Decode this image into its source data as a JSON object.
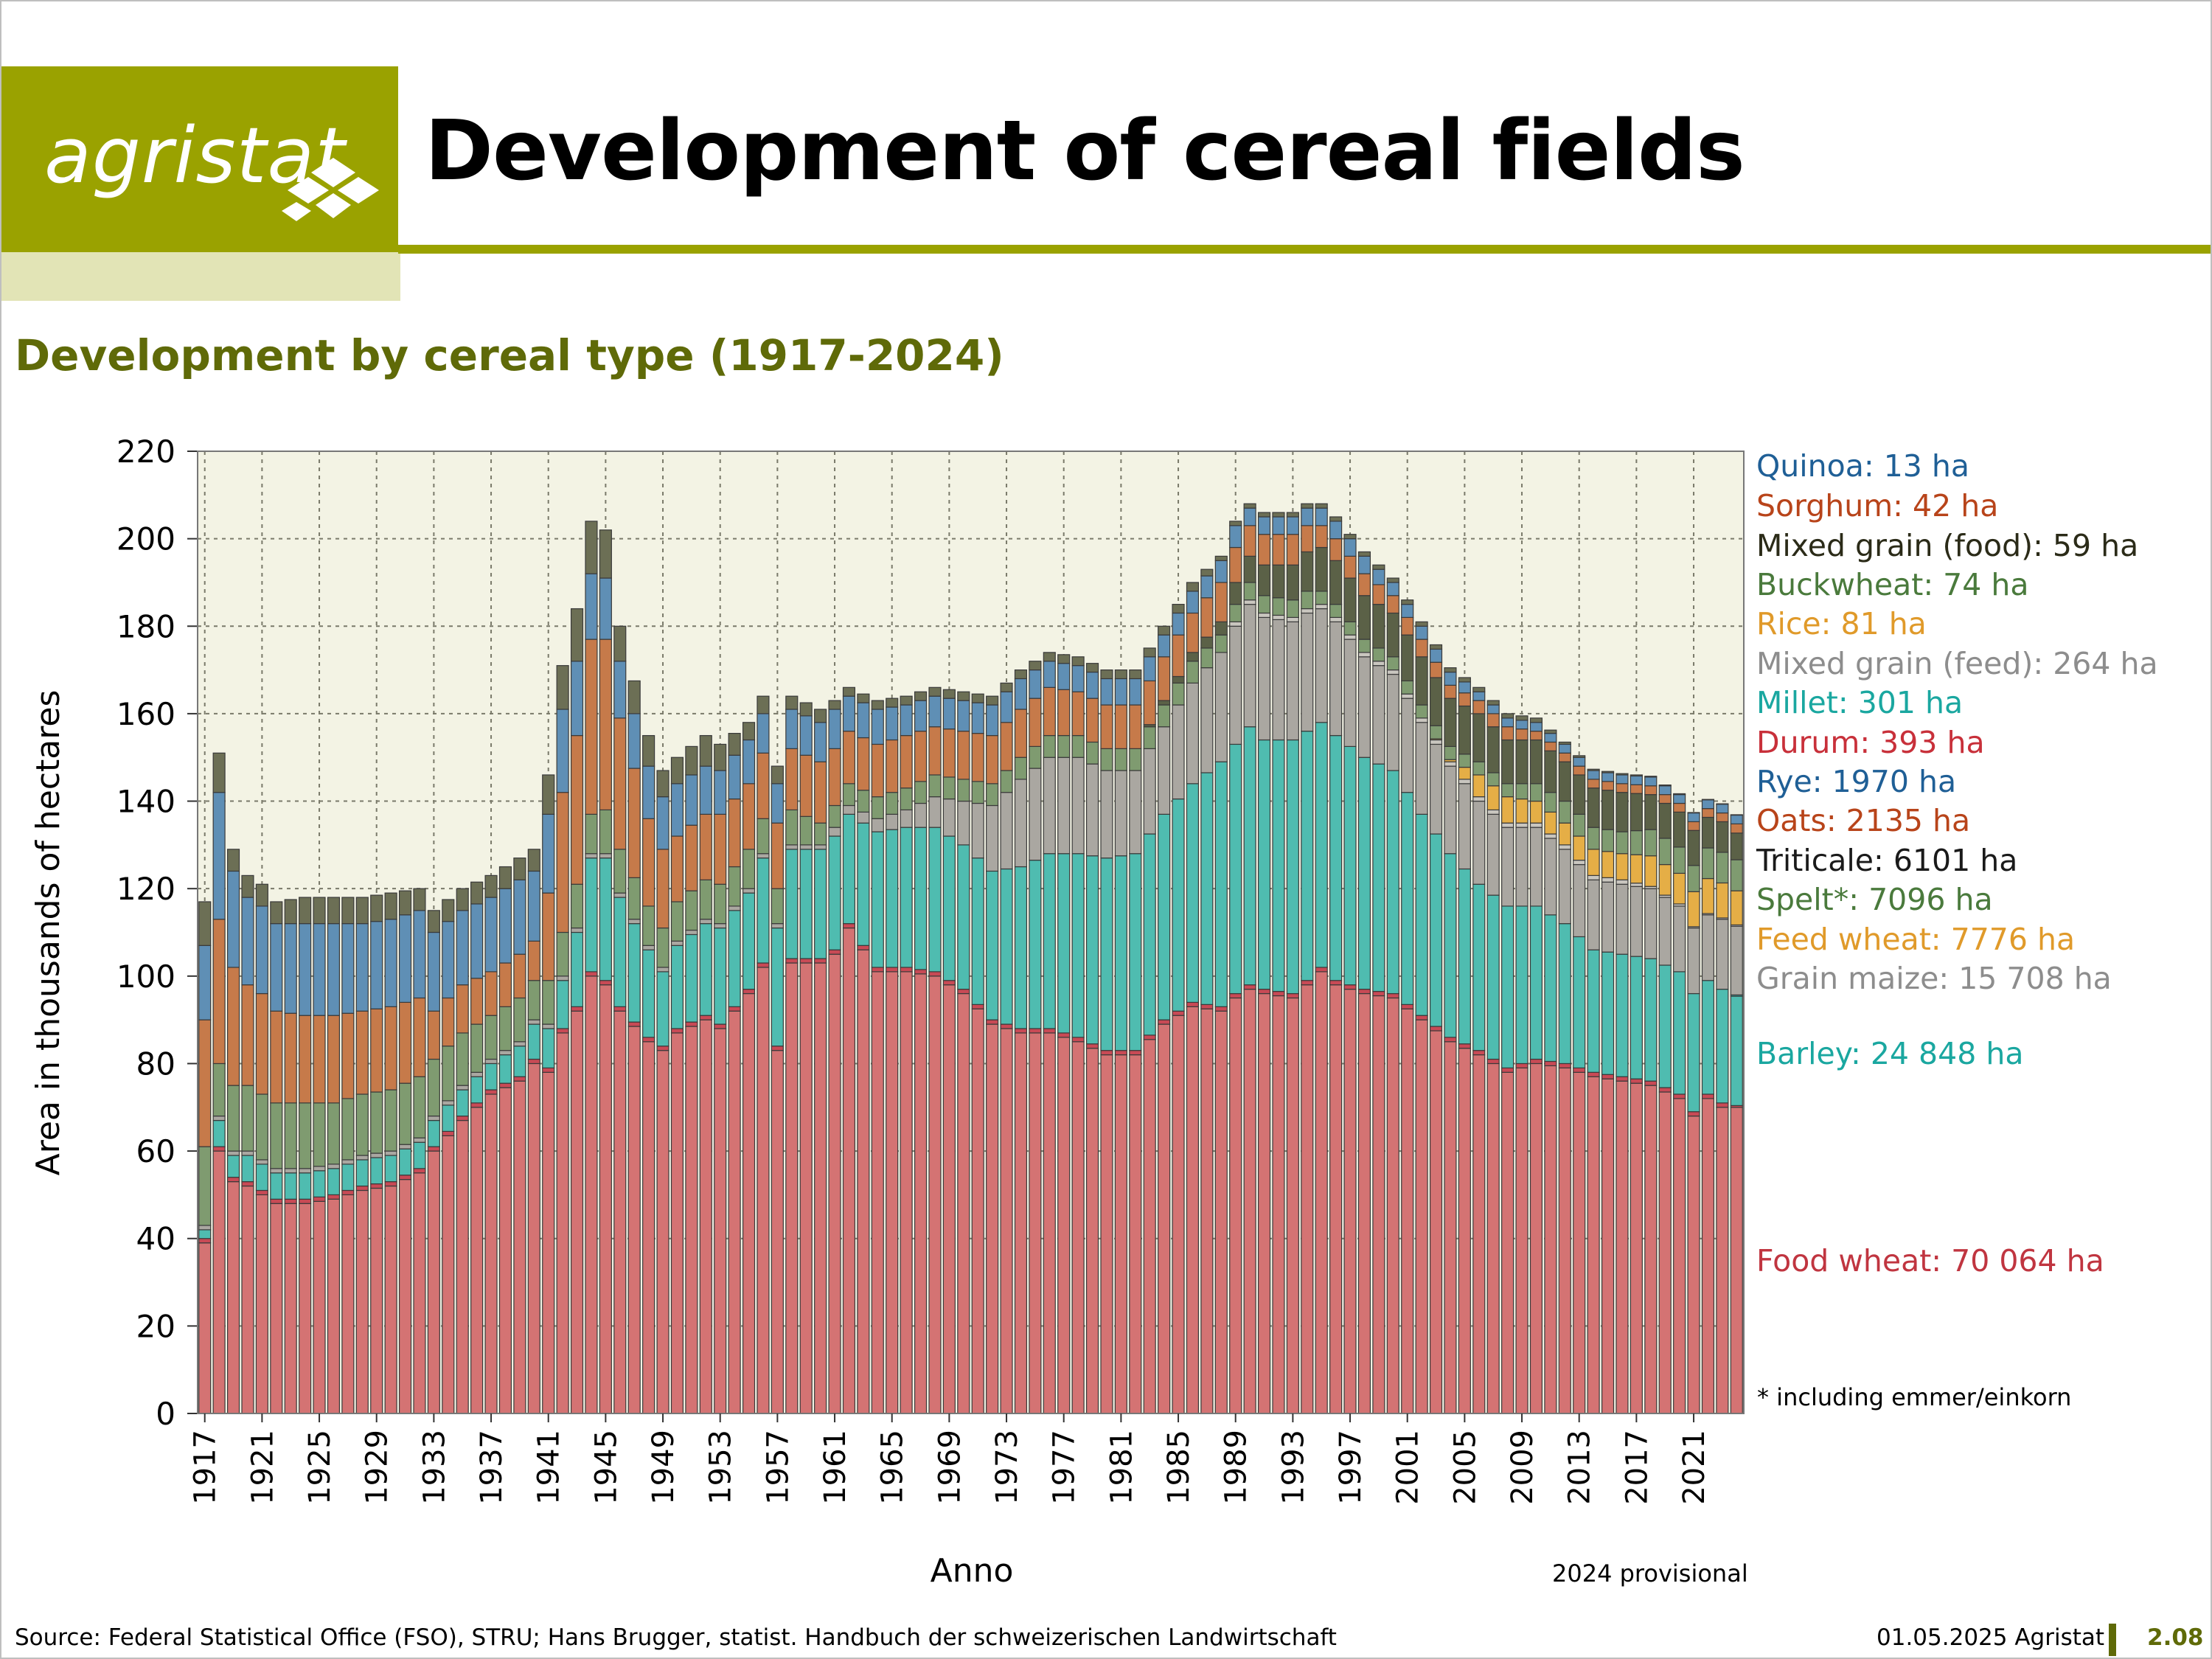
{
  "header": {
    "logo_text": "agristat",
    "title": "Development of cereal fields",
    "subtitle": "Development by cereal type (1917-2024)"
  },
  "footer": {
    "source": "Source: Federal Statistical Office (FSO), STRU; Hans Brugger, statist. Handbuch der schweizerischen Landwirtschaft",
    "date": "01.05.2025 Agristat",
    "page": "2.08"
  },
  "notes": {
    "footnote": "* including emmer/einkorn",
    "provisional": "2024 provisional"
  },
  "colors": {
    "accent": "#9aa200",
    "accent_light": "#e2e4b6",
    "subtitle": "#5f6a08",
    "plot_bg": "#f3f3e4"
  },
  "legend": [
    {
      "label": "Quinoa: 13 ha",
      "color": "#1f5f96"
    },
    {
      "label": "Sorghum: 42 ha",
      "color": "#b8441a"
    },
    {
      "label": "Mixed grain (food): 59 ha",
      "color": "#2b2b18"
    },
    {
      "label": "Buckwheat: 74 ha",
      "color": "#4a7a3c"
    },
    {
      "label": "Rice: 81 ha",
      "color": "#e09a2a"
    },
    {
      "label": "Mixed grain (feed): 264 ha",
      "color": "#8d8d8d"
    },
    {
      "label": "Millet: 301 ha",
      "color": "#1aa7a0"
    },
    {
      "label": "Durum: 393 ha",
      "color": "#c8303a"
    },
    {
      "label": "Rye: 1970 ha",
      "color": "#1f5f96"
    },
    {
      "label": "Oats: 2135 ha",
      "color": "#b8441a"
    },
    {
      "label": "Triticale: 6101 ha",
      "color": "#1a1a1a"
    },
    {
      "label": "Spelt*: 7096 ha",
      "color": "#4a7a3c"
    },
    {
      "label": "Feed wheat: 7776 ha",
      "color": "#e09a2a"
    },
    {
      "label": "Grain maize: 15 708 ha",
      "color": "#8d8d8d"
    },
    {
      "label": "Barley: 24 848 ha",
      "color": "#1aa7a0"
    },
    {
      "label": "Food wheat: 70 064 ha",
      "color": "#c03540"
    }
  ],
  "chart_data": {
    "type": "bar",
    "stacked": true,
    "ylabel": "Area in thousands of hectares",
    "xlabel": "Anno",
    "ylim": [
      0,
      220
    ],
    "yticks": [
      0,
      20,
      40,
      60,
      80,
      100,
      120,
      140,
      160,
      180,
      200,
      220
    ],
    "x_tick_labels": [
      "1917",
      "1921",
      "1925",
      "1929",
      "1933",
      "1937",
      "1941",
      "1945",
      "1949",
      "1953",
      "1957",
      "1961",
      "1965",
      "1969",
      "1973",
      "1977",
      "1981",
      "1985",
      "1989",
      "1993",
      "1997",
      "2001",
      "2005",
      "2009",
      "2013",
      "2017",
      "2021"
    ],
    "grid": true,
    "anchors": {
      "years": [
        1917,
        1918,
        1919,
        1920,
        1921,
        1922,
        1924,
        1926,
        1928,
        1930,
        1932,
        1933,
        1935,
        1937,
        1939,
        1940,
        1941,
        1942,
        1943,
        1944,
        1945,
        1946,
        1948,
        1949,
        1950,
        1952,
        1953,
        1955,
        1956,
        1957,
        1958,
        1960,
        1961,
        1962,
        1964,
        1966,
        1968,
        1970,
        1972,
        1974,
        1976,
        1978,
        1980,
        1982,
        1984,
        1986,
        1988,
        1989,
        1990,
        1991,
        1993,
        1994,
        1995,
        1996,
        1998,
        2000,
        2002,
        2004,
        2006,
        2008,
        2010,
        2012,
        2014,
        2016,
        2018,
        2020,
        2021,
        2022,
        2023,
        2024
      ],
      "food_wheat": [
        39,
        60,
        53,
        52,
        50,
        48,
        48,
        49,
        51,
        52,
        55,
        60,
        67,
        73,
        76,
        80,
        78,
        87,
        92,
        100,
        98,
        92,
        85,
        83,
        87,
        90,
        88,
        96,
        102,
        83,
        103,
        103,
        105,
        111,
        101,
        101,
        100,
        96,
        89,
        87,
        87,
        85,
        82,
        82,
        89,
        93,
        92,
        95,
        97,
        96,
        95,
        98,
        101,
        98,
        96,
        95,
        90,
        85,
        82,
        78,
        80,
        79,
        77,
        76,
        75,
        72,
        68,
        72,
        70,
        70
      ],
      "durum": [
        1,
        1,
        1,
        1,
        1,
        1,
        1,
        1,
        1,
        1,
        1,
        1,
        1,
        1,
        1,
        1,
        1,
        1,
        1,
        1,
        1,
        1,
        1,
        1,
        1,
        1,
        1,
        1,
        1,
        1,
        1,
        1,
        1,
        1,
        1,
        1,
        1,
        1,
        1,
        1,
        1,
        1,
        1,
        1,
        1,
        1,
        1,
        1,
        1,
        1,
        1,
        1,
        1,
        1,
        1,
        1,
        1,
        1,
        1,
        1,
        1,
        1,
        1,
        1,
        1,
        1,
        1,
        1,
        1,
        0.4
      ],
      "barley": [
        2,
        6,
        5,
        6,
        6,
        6,
        6,
        6,
        6,
        6,
        6,
        6,
        6,
        6,
        7,
        8,
        9,
        11,
        17,
        26,
        28,
        25,
        20,
        17,
        19,
        21,
        22,
        22,
        24,
        27,
        25,
        25,
        26,
        25,
        31,
        32,
        33,
        33,
        34,
        37,
        40,
        42,
        44,
        45,
        47,
        50,
        56,
        57,
        59,
        57,
        58,
        57,
        56,
        56,
        53,
        51,
        46,
        42,
        38,
        37,
        35,
        32,
        28,
        28,
        28,
        28,
        27,
        26,
        26,
        25
      ],
      "millet": [
        0,
        0,
        0,
        0,
        0,
        0,
        0,
        0,
        0,
        0,
        0,
        0,
        0,
        0,
        0,
        0,
        0,
        0,
        0,
        0,
        0,
        0,
        0,
        0,
        0,
        0,
        0,
        0,
        0,
        0,
        0,
        0,
        0,
        0,
        0,
        0,
        0,
        0,
        0,
        0,
        0,
        0,
        0,
        0,
        0,
        0,
        0,
        0,
        0,
        0,
        0,
        0,
        0,
        0,
        0,
        0,
        0,
        0,
        0,
        0,
        0,
        0,
        0,
        0,
        0,
        0,
        0,
        0,
        0,
        0.3
      ],
      "grain_maize": [
        1,
        1,
        1,
        1,
        1,
        1,
        1,
        1,
        1,
        1,
        1,
        1,
        1,
        1,
        1,
        1,
        1,
        1,
        1,
        1,
        1,
        1,
        1,
        1,
        1,
        1,
        1,
        1,
        1,
        1,
        1,
        1,
        2,
        2,
        3,
        4,
        7,
        10,
        15,
        20,
        22,
        22,
        20,
        19,
        20,
        23,
        25,
        27,
        28,
        28,
        27,
        27,
        26,
        26,
        23,
        22,
        21,
        20,
        19,
        18,
        18,
        17,
        16,
        16,
        16,
        15,
        15,
        15,
        16,
        15.7
      ],
      "mixed_feed": [
        0,
        0,
        0,
        0,
        0,
        0,
        0,
        0,
        0,
        0,
        0,
        0,
        0,
        0,
        0,
        0,
        0,
        0,
        0,
        0,
        0,
        0,
        0,
        0,
        0,
        0,
        0,
        0,
        0,
        0,
        0,
        0,
        0,
        0,
        0,
        0,
        0,
        0,
        0,
        0,
        0,
        0,
        0,
        0,
        0,
        0,
        0,
        1,
        1,
        1,
        1,
        1,
        1,
        1,
        1,
        1,
        1,
        1,
        1,
        1,
        1,
        1,
        1,
        1,
        0.5,
        0.5,
        0.3,
        0.3,
        0.3,
        0.3
      ],
      "feed_wheat": [
        0,
        0,
        0,
        0,
        0,
        0,
        0,
        0,
        0,
        0,
        0,
        0,
        0,
        0,
        0,
        0,
        0,
        0,
        0,
        0,
        0,
        0,
        0,
        0,
        0,
        0,
        0,
        0,
        0,
        0,
        0,
        0,
        0,
        0,
        0,
        0,
        0,
        0,
        0,
        0,
        0,
        0,
        0,
        0,
        0,
        0,
        0,
        0,
        0,
        0,
        0,
        0,
        0,
        0,
        0,
        0,
        0,
        0.5,
        5,
        6,
        5,
        5,
        6,
        6,
        7,
        7,
        8,
        8,
        8,
        7.8
      ],
      "spelt": [
        18,
        12,
        15,
        15,
        15,
        15,
        15,
        14,
        14,
        14,
        14,
        13,
        12,
        10,
        10,
        9,
        10,
        10,
        10,
        9,
        10,
        10,
        9,
        9,
        9,
        9,
        9,
        9,
        8,
        8,
        8,
        5,
        5,
        5,
        5,
        5,
        5,
        5,
        5,
        5,
        5,
        5,
        5,
        5,
        5,
        5,
        4,
        4,
        4,
        4,
        4,
        4,
        3,
        3,
        3,
        3,
        3,
        3,
        3,
        3,
        4,
        5,
        5,
        5,
        6,
        6,
        6,
        7,
        7,
        7.1
      ],
      "triticale": [
        0,
        0,
        0,
        0,
        0,
        0,
        0,
        0,
        0,
        0,
        0,
        0,
        0,
        0,
        0,
        0,
        0,
        0,
        0,
        0,
        0,
        0,
        0,
        0,
        0,
        0,
        0,
        0,
        0,
        0,
        0,
        0,
        0,
        0,
        0,
        0,
        0,
        0,
        0,
        0,
        0,
        0,
        0,
        0,
        1,
        2,
        3,
        5,
        6,
        7,
        8,
        9,
        10,
        10,
        10,
        10,
        11,
        11,
        11,
        10,
        10,
        9,
        9,
        9,
        8,
        8,
        8,
        7,
        7,
        6.1
      ],
      "oats": [
        29,
        33,
        27,
        23,
        23,
        21,
        20,
        20,
        19,
        19,
        18,
        11,
        11,
        10,
        10,
        9,
        20,
        32,
        34,
        40,
        39,
        30,
        20,
        18,
        15,
        15,
        16,
        15,
        15,
        15,
        14,
        14,
        13,
        12,
        12,
        12,
        11,
        11,
        11,
        11,
        11,
        10,
        10,
        10,
        10,
        9,
        9,
        8,
        7,
        7,
        7,
        6,
        5,
        5,
        5,
        4,
        4,
        3,
        3,
        3,
        2,
        2,
        2,
        2,
        2,
        2,
        2,
        2,
        2,
        2.1
      ],
      "rye": [
        17,
        29,
        22,
        20,
        20,
        20,
        21,
        21,
        20,
        20,
        20,
        18,
        17,
        17,
        17,
        16,
        18,
        19,
        17,
        15,
        14,
        13,
        12,
        12,
        12,
        11,
        10,
        10,
        9,
        9,
        9,
        9,
        9,
        8,
        8,
        7,
        7,
        7,
        7,
        7,
        6,
        6,
        6,
        6,
        5,
        5,
        5,
        5,
        4,
        4,
        4,
        4,
        4,
        4,
        4,
        3,
        3,
        3,
        2,
        2,
        2,
        2,
        2,
        2,
        2,
        2,
        2,
        2,
        2,
        2
      ],
      "mixed_food": [
        10,
        9,
        5,
        5,
        5,
        5,
        6,
        6,
        6,
        6,
        5,
        5,
        5,
        5,
        5,
        5,
        9,
        10,
        12,
        12,
        11,
        8,
        7,
        6,
        6,
        7,
        6,
        4,
        4,
        4,
        3,
        3,
        2,
        2,
        2,
        2,
        2,
        2,
        2,
        2,
        2,
        2,
        2,
        2,
        2,
        2,
        1,
        1,
        1,
        1,
        1,
        1,
        1,
        1,
        1,
        1,
        1,
        1,
        1,
        1,
        1,
        0.5,
        0.3,
        0.3,
        0.2,
        0.2,
        0.1,
        0.1,
        0.1,
        0.1
      ]
    },
    "series": [
      {
        "name": "Food wheat",
        "key": "food_wheat",
        "color": "#d47373",
        "value_2024": 70064
      },
      {
        "name": "Durum",
        "key": "durum",
        "color": "#c84a55",
        "value_2024": 393
      },
      {
        "name": "Barley",
        "key": "barley",
        "color": "#4fbcb0",
        "value_2024": 24848
      },
      {
        "name": "Millet",
        "key": "millet",
        "color": "#2fb3ad",
        "value_2024": 301
      },
      {
        "name": "Grain maize",
        "key": "grain_maize",
        "color": "#aaa7a1",
        "value_2024": 15708
      },
      {
        "name": "Mixed grain (feed)",
        "key": "mixed_feed",
        "color": "#c9c6bf",
        "value_2024": 264
      },
      {
        "name": "Feed wheat",
        "key": "feed_wheat",
        "color": "#e5ae46",
        "value_2024": 7776
      },
      {
        "name": "Spelt*",
        "key": "spelt",
        "color": "#7f9b70",
        "value_2024": 7096
      },
      {
        "name": "Triticale",
        "key": "triticale",
        "color": "#5b6147",
        "value_2024": 6101
      },
      {
        "name": "Oats",
        "key": "oats",
        "color": "#c67a4a",
        "value_2024": 2135
      },
      {
        "name": "Rye",
        "key": "rye",
        "color": "#5f8fb5",
        "value_2024": 1970
      },
      {
        "name": "Mixed grain (food)",
        "key": "mixed_food",
        "color": "#6c6f55",
        "value_2024": 59
      }
    ]
  }
}
